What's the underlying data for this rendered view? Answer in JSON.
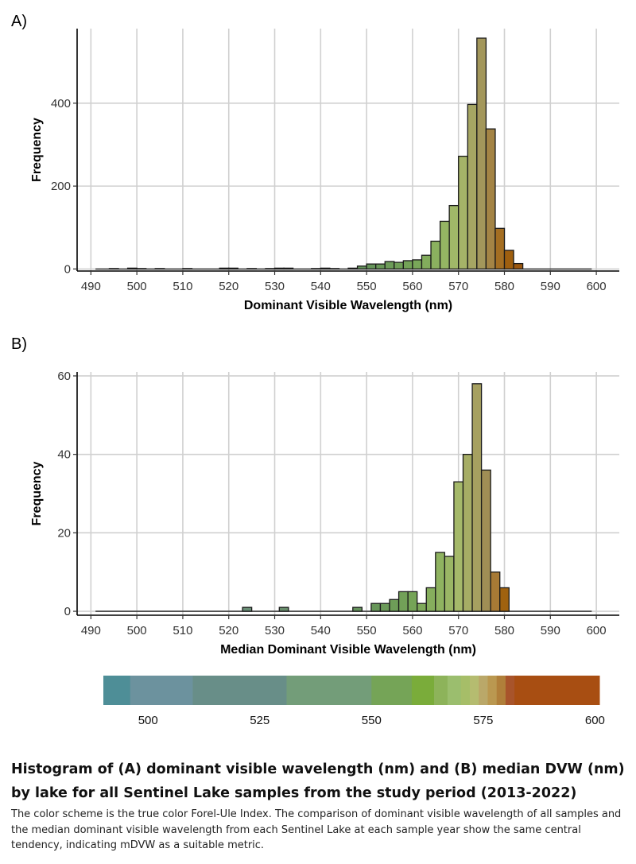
{
  "panels": {
    "a_label": "A)",
    "b_label": "B)"
  },
  "chart_data": [
    {
      "type": "bar",
      "panel": "A)",
      "xlabel": "Dominant Visible Wavelength (nm)",
      "ylabel": "Frequency",
      "xlim": [
        487,
        605
      ],
      "ylim": [
        -5,
        580
      ],
      "xticks": [
        490,
        500,
        510,
        520,
        530,
        540,
        550,
        560,
        570,
        580,
        590,
        600
      ],
      "yticks": [
        0,
        200,
        400
      ],
      "bin_width": 2,
      "baseline_range": [
        491,
        599
      ],
      "grid": true,
      "x": [
        495,
        499,
        501,
        505,
        511,
        519,
        521,
        525,
        529,
        531,
        533,
        539,
        541,
        543,
        547,
        549,
        551,
        553,
        555,
        557,
        559,
        561,
        563,
        565,
        567,
        569,
        571,
        573,
        575,
        577,
        579,
        581,
        583
      ],
      "values": [
        1,
        2,
        1,
        1,
        1,
        2,
        2,
        1,
        1,
        2,
        2,
        1,
        2,
        1,
        2,
        7,
        12,
        12,
        18,
        16,
        20,
        22,
        33,
        67,
        115,
        153,
        272,
        397,
        557,
        338,
        98,
        45,
        13
      ]
    },
    {
      "type": "bar",
      "panel": "B)",
      "xlabel": "Median Dominant Visible Wavelength (nm)",
      "ylabel": "Frequency",
      "xlim": [
        487,
        605
      ],
      "ylim": [
        -1,
        61
      ],
      "xticks": [
        490,
        500,
        510,
        520,
        530,
        540,
        550,
        560,
        570,
        580,
        590,
        600
      ],
      "yticks": [
        0,
        20,
        40,
        60
      ],
      "bin_width": 2,
      "baseline_range": [
        491,
        599
      ],
      "grid": true,
      "x": [
        524,
        532,
        548,
        552,
        554,
        556,
        558,
        560,
        562,
        564,
        566,
        568,
        570,
        572,
        574,
        576,
        578,
        580
      ],
      "values": [
        1,
        1,
        1,
        2,
        2,
        3,
        5,
        5,
        2,
        6,
        15,
        14,
        33,
        40,
        58,
        36,
        10,
        6
      ]
    }
  ],
  "colorbar": {
    "ticks": [
      "500",
      "525",
      "550",
      "575",
      "600"
    ],
    "tick_values": [
      500,
      525,
      550,
      575,
      600
    ],
    "range": [
      490,
      601
    ],
    "segments": [
      {
        "from": 490,
        "to": 496,
        "color": "#4E8E97"
      },
      {
        "from": 496,
        "to": 510,
        "color": "#6C929E"
      },
      {
        "from": 510,
        "to": 531,
        "color": "#688E88"
      },
      {
        "from": 531,
        "to": 550,
        "color": "#739D79"
      },
      {
        "from": 550,
        "to": 559,
        "color": "#75A457"
      },
      {
        "from": 559,
        "to": 564,
        "color": "#7AAC3A"
      },
      {
        "from": 564,
        "to": 567,
        "color": "#8DB35A"
      },
      {
        "from": 567,
        "to": 570,
        "color": "#9BBE6E"
      },
      {
        "from": 570,
        "to": 572,
        "color": "#A6BE68"
      },
      {
        "from": 572,
        "to": 574,
        "color": "#B5BC70"
      },
      {
        "from": 574,
        "to": 576,
        "color": "#BAA869"
      },
      {
        "from": 576,
        "to": 578,
        "color": "#BA9850"
      },
      {
        "from": 578,
        "to": 580,
        "color": "#B07F3A"
      },
      {
        "from": 580,
        "to": 582,
        "color": "#A8542B"
      },
      {
        "from": 582,
        "to": 601,
        "color": "#A84E12"
      }
    ]
  },
  "caption": {
    "title": "Histogram of (A) dominant visible wavelength (nm) and (B) median DVW (nm) by lake for all Sentinel Lake samples from the study period (2013-2022)",
    "body": "The color scheme is the true color Forel-Ule Index. The comparison of dominant visible wavelength of all samples and the median dominant visible wavelength from each Sentinel Lake at each sample year show the same central tendency, indicating mDVW as a suitable metric."
  }
}
